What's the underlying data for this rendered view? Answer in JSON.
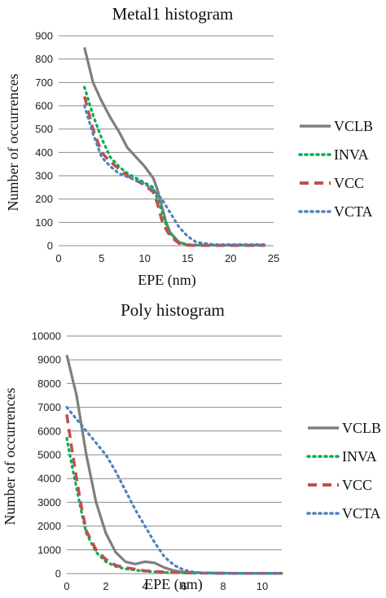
{
  "chart_data": [
    {
      "type": "line",
      "title": "Metal1 histogram",
      "xlabel": "EPE (nm)",
      "ylabel": "Number of occurrences",
      "xlim": [
        0,
        25
      ],
      "ylim": [
        0,
        900
      ],
      "xticks": [
        0,
        5,
        10,
        15,
        20,
        25
      ],
      "yticks": [
        0,
        100,
        200,
        300,
        400,
        500,
        600,
        700,
        800,
        900
      ],
      "grid": "horizontal",
      "legend": "right",
      "series": [
        {
          "name": "VCLB",
          "color": "#7f7f7f",
          "style": "solid",
          "x": [
            3,
            4,
            5,
            6,
            7,
            8,
            9,
            10,
            11,
            11.5,
            12,
            12.5,
            13,
            14,
            15,
            16,
            18,
            20,
            22,
            24
          ],
          "y": [
            850,
            700,
            620,
            550,
            490,
            420,
            380,
            340,
            290,
            240,
            170,
            100,
            55,
            15,
            3,
            2,
            2,
            2,
            2,
            2
          ]
        },
        {
          "name": "INVA",
          "color": "#00b050",
          "style": "dotted",
          "x": [
            3,
            4,
            5,
            6,
            7,
            8,
            9,
            10,
            11,
            11.5,
            12,
            12.5,
            13,
            14,
            15,
            16,
            18,
            20,
            22,
            24
          ],
          "y": [
            680,
            560,
            460,
            380,
            340,
            310,
            290,
            270,
            250,
            200,
            150,
            90,
            50,
            15,
            5,
            3,
            3,
            3,
            3,
            3
          ]
        },
        {
          "name": "VCC",
          "color": "#c0504d",
          "style": "dashed",
          "x": [
            3,
            4,
            5,
            6,
            7,
            8,
            9,
            10,
            11,
            11.5,
            12,
            12.5,
            13,
            14,
            15,
            16,
            18,
            20,
            22,
            24
          ],
          "y": [
            640,
            500,
            400,
            360,
            330,
            300,
            280,
            260,
            230,
            180,
            110,
            70,
            40,
            10,
            2,
            1,
            1,
            1,
            1,
            1
          ]
        },
        {
          "name": "VCTA",
          "color": "#4f81bd",
          "style": "dotted",
          "x": [
            3,
            4,
            5,
            6,
            7,
            8,
            9,
            10,
            11,
            12,
            13,
            14,
            15,
            16,
            18,
            20,
            22,
            24
          ],
          "y": [
            600,
            480,
            380,
            340,
            310,
            295,
            280,
            265,
            240,
            200,
            140,
            80,
            40,
            15,
            5,
            5,
            5,
            5
          ]
        }
      ]
    },
    {
      "type": "line",
      "title": "Poly histogram",
      "xlabel": "EPE (nm)",
      "ylabel": "Number of occurrences",
      "xlim": [
        0,
        11
      ],
      "ylim": [
        0,
        10000
      ],
      "xticks": [
        0,
        2,
        4,
        6,
        8,
        10
      ],
      "yticks": [
        0,
        1000,
        2000,
        3000,
        4000,
        5000,
        6000,
        7000,
        8000,
        9000,
        10000
      ],
      "grid": "horizontal",
      "legend": "right",
      "series": [
        {
          "name": "VCLB",
          "color": "#7f7f7f",
          "style": "solid",
          "x": [
            0,
            0.5,
            1,
            1.5,
            2,
            2.5,
            3,
            3.5,
            4,
            4.5,
            5,
            5.5,
            6,
            7,
            8,
            9,
            10,
            11
          ],
          "y": [
            9200,
            7500,
            5000,
            3000,
            1700,
            900,
            500,
            400,
            500,
            450,
            250,
            120,
            60,
            30,
            20,
            10,
            10,
            10
          ]
        },
        {
          "name": "INVA",
          "color": "#00b050",
          "style": "dotted",
          "x": [
            0,
            0.25,
            0.5,
            0.75,
            1,
            1.5,
            2,
            2.5,
            3,
            4,
            5,
            6,
            7,
            8,
            9,
            10,
            11
          ],
          "y": [
            5700,
            4600,
            3600,
            2600,
            1700,
            900,
            500,
            300,
            200,
            100,
            50,
            30,
            20,
            10,
            10,
            10,
            10
          ]
        },
        {
          "name": "VCC",
          "color": "#c0504d",
          "style": "dashed",
          "x": [
            0,
            0.25,
            0.5,
            0.75,
            1,
            1.5,
            2,
            2.5,
            3,
            4,
            5,
            6,
            7,
            8,
            9,
            10,
            11
          ],
          "y": [
            6700,
            5300,
            4000,
            2800,
            1800,
            1000,
            600,
            350,
            250,
            120,
            60,
            30,
            20,
            10,
            10,
            10,
            10
          ]
        },
        {
          "name": "VCTA",
          "color": "#4f81bd",
          "style": "dotted",
          "x": [
            0,
            0.5,
            1,
            1.5,
            2,
            2.5,
            3,
            3.5,
            4,
            4.5,
            5,
            5.5,
            6,
            6.5,
            7,
            8,
            9,
            10,
            11
          ],
          "y": [
            7000,
            6500,
            6000,
            5500,
            5000,
            4300,
            3500,
            2700,
            2000,
            1300,
            700,
            350,
            150,
            60,
            30,
            20,
            10,
            10,
            10
          ]
        }
      ]
    }
  ]
}
